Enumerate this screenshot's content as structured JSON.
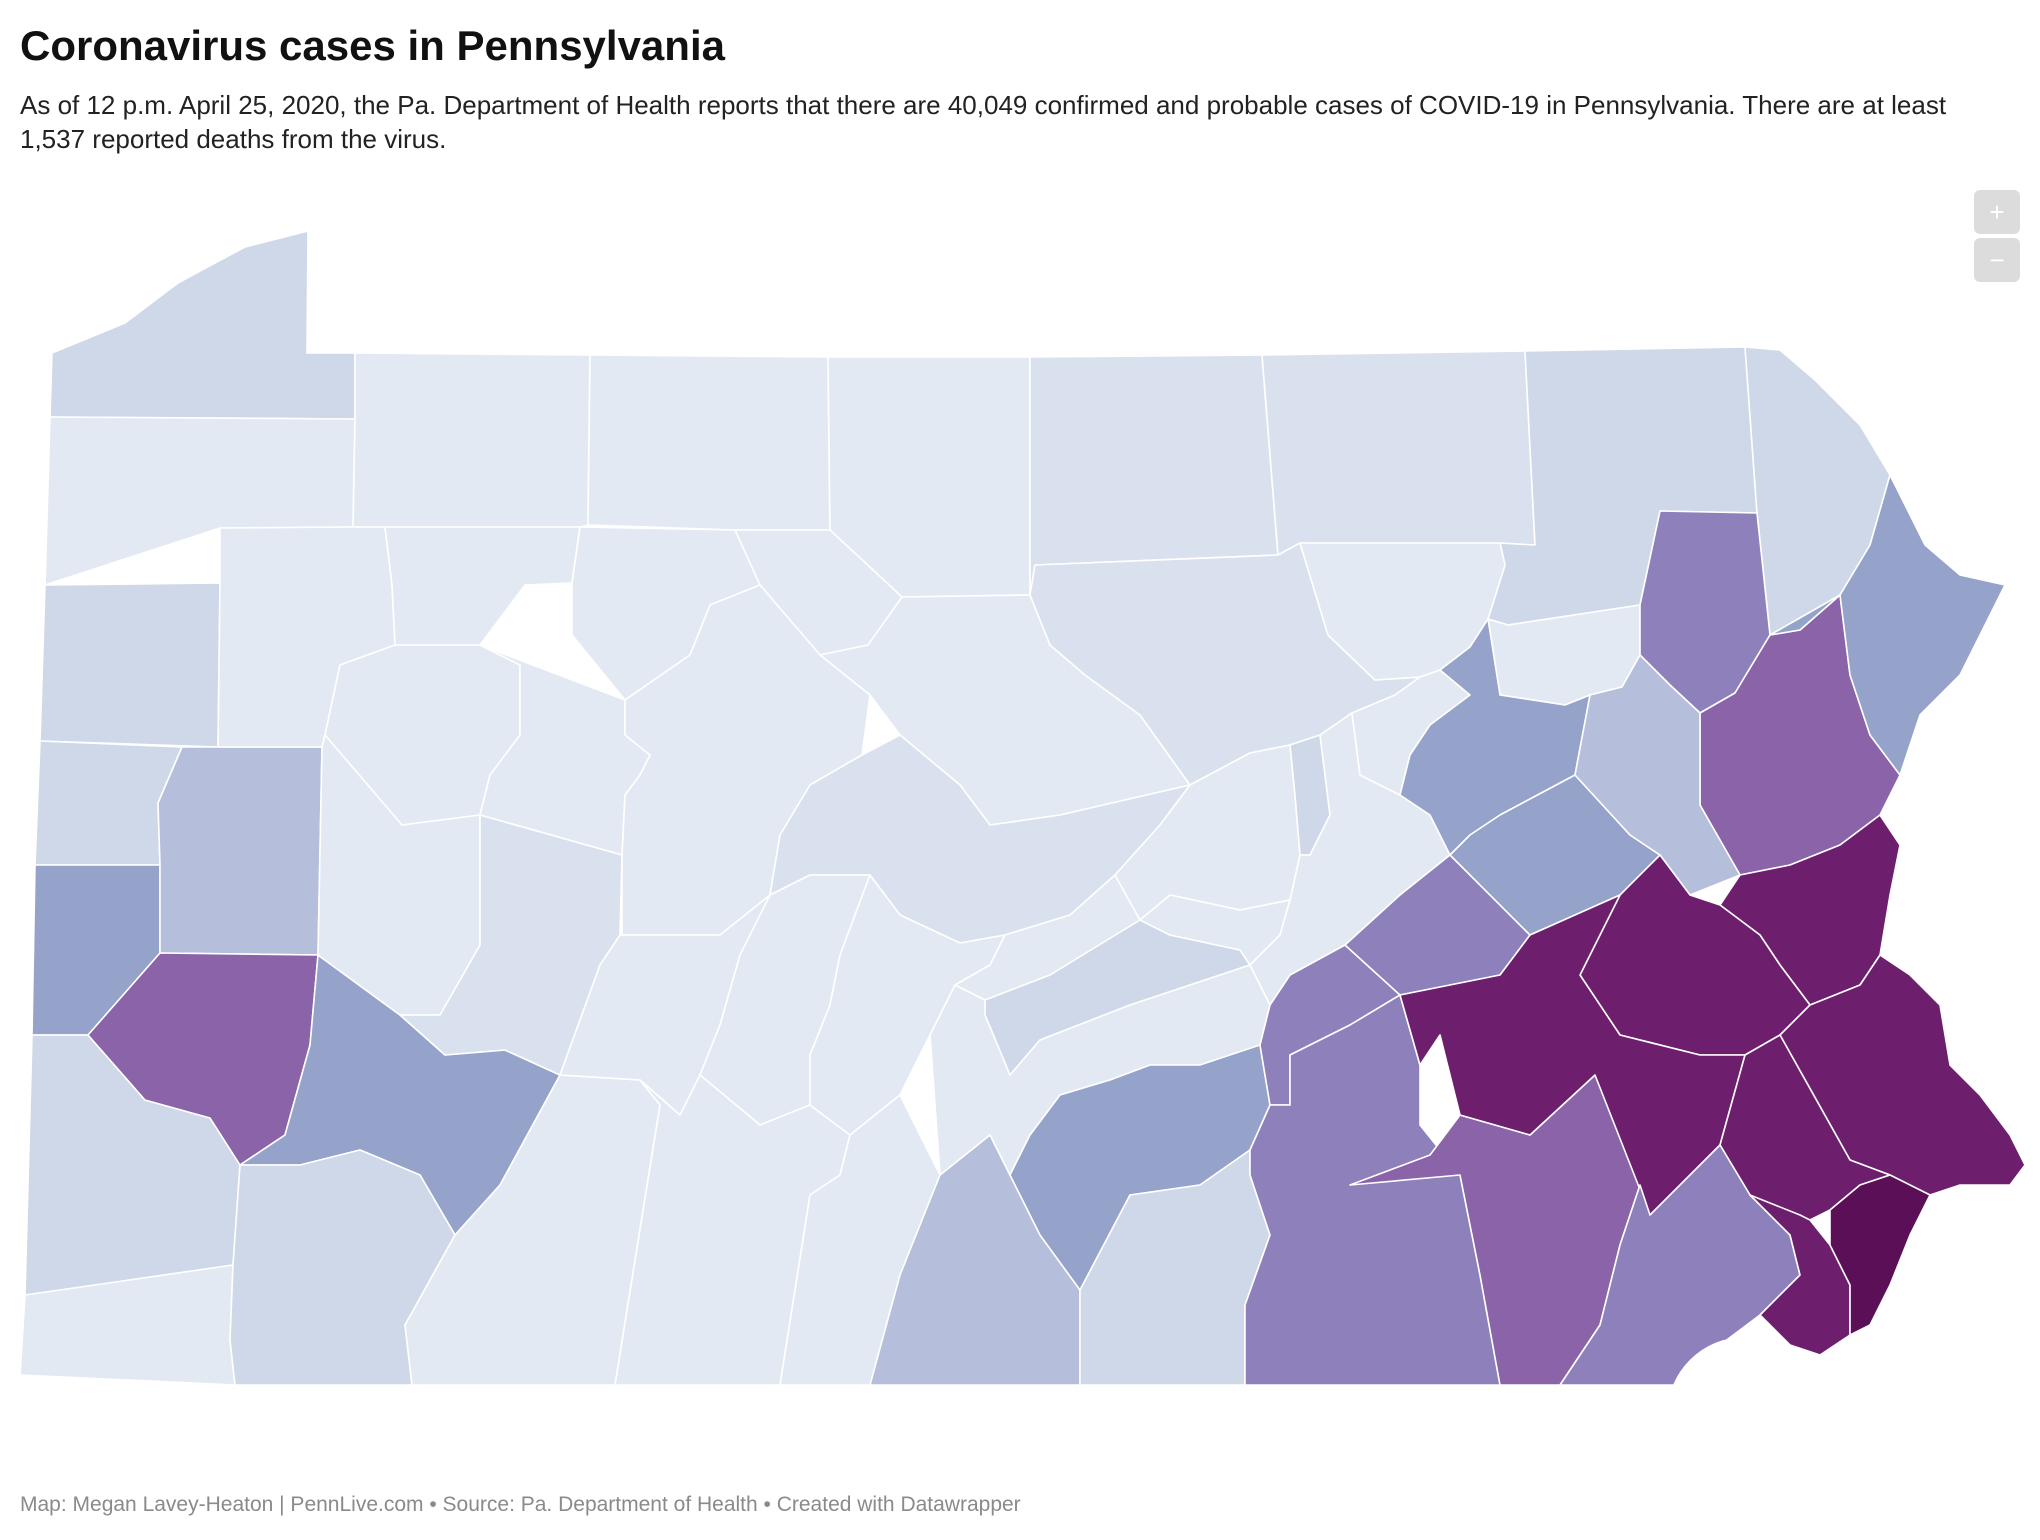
{
  "title": "Coronavirus cases in Pennsylvania",
  "description": "As of 12 p.m. April 25, 2020, the Pa. Department of Health reports that there are 40,049 confirmed and probable cases of COVID-19 in Pennsylvania. There are at least 1,537 reported deaths from the virus.",
  "footer": "Map: Megan Lavey-Heaton | PennLive.com • Source: Pa. Department of Health • Created with Datawrapper",
  "zoom": {
    "in_label": "+",
    "out_label": "−"
  },
  "colors": {
    "lightest": "#e3e9f3",
    "very_light": "#dae1ee",
    "light": "#cfd8e8",
    "light_mid": "#b5bfdc",
    "mid_blue": "#95a2c9",
    "mid_purple": "#8e80bb",
    "purple": "#8a63a8",
    "dark": "#6d1f6e",
    "darkest": "#5a0f57",
    "background": "#ffffff"
  }
}
